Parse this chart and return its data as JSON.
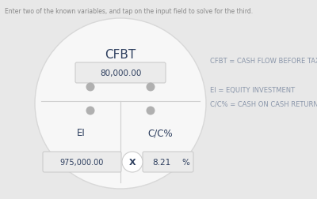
{
  "bg_color": "#e8e8e8",
  "circle_facecolor": "#f7f7f7",
  "circle_edgecolor": "#d8d8d8",
  "header_text": "Enter two of the known variables, and tap on the input field to solve for the third.",
  "cfbt_label": "CFBT",
  "cfbt_value": "80,000.00",
  "ei_label": "EI",
  "ei_value": "975,000.00",
  "cc_label": "C/C%",
  "cc_value": "8.21",
  "cc_unit": "%",
  "multiply_symbol": "X",
  "legend_lines": [
    "CFBT = CASH FLOW BEFORE TAX",
    "",
    "EI = EQUITY INVESTMENT",
    "C/C% = CASH ON CASH RETURN"
  ],
  "box_facecolor": "#ebebeb",
  "box_edgecolor": "#cccccc",
  "dot_color": "#b0b0b0",
  "text_dark": "#2d3e5e",
  "legend_color": "#8a96aa",
  "divider_color": "#d0d0d0",
  "x_circle_facecolor": "#ffffff",
  "x_circle_edgecolor": "#cccccc",
  "header_color": "#888888"
}
